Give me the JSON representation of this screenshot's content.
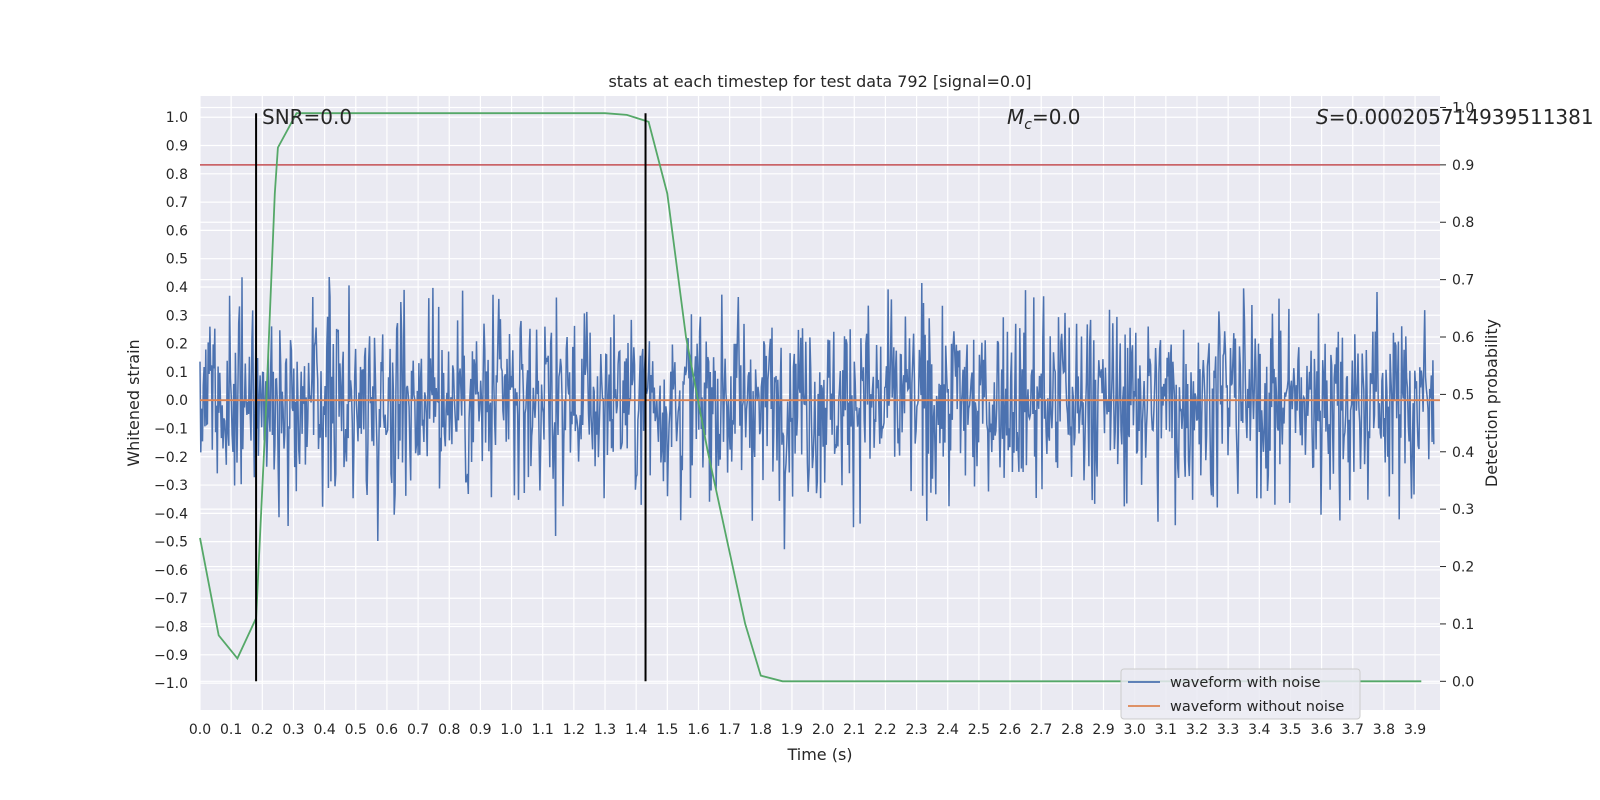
{
  "chart_data": {
    "type": "line",
    "title": "stats at each timestep for test data 792 [signal=0.0]",
    "xlabel": "Time (s)",
    "ylabel_left": "Whitened strain",
    "ylabel_right": "Detection probability",
    "xlim": [
      0.0,
      3.98
    ],
    "ylim_left": [
      -1.095,
      1.075
    ],
    "ylim_right": [
      -0.05,
      1.02
    ],
    "x_ticks": [
      "0.0",
      "0.1",
      "0.2",
      "0.3",
      "0.4",
      "0.5",
      "0.6",
      "0.7",
      "0.8",
      "0.9",
      "1.0",
      "1.1",
      "1.2",
      "1.3",
      "1.4",
      "1.5",
      "1.6",
      "1.7",
      "1.8",
      "1.9",
      "2.0",
      "2.1",
      "2.2",
      "2.3",
      "2.4",
      "2.5",
      "2.6",
      "2.7",
      "2.8",
      "2.9",
      "3.0",
      "3.1",
      "3.2",
      "3.3",
      "3.4",
      "3.5",
      "3.6",
      "3.7",
      "3.8",
      "3.9"
    ],
    "y_ticks_left": [
      "1.0",
      "0.9",
      "0.8",
      "0.7",
      "0.6",
      "0.5",
      "0.4",
      "0.3",
      "0.2",
      "0.1",
      "0.0",
      "−0.1",
      "−0.2",
      "−0.3",
      "−0.4",
      "−0.5",
      "−0.6",
      "−0.7",
      "−0.8",
      "−0.9",
      "−1.0"
    ],
    "y_ticks_right": [
      "1.0",
      "0.9",
      "0.8",
      "0.7",
      "0.6",
      "0.5",
      "0.4",
      "0.3",
      "0.2",
      "0.1",
      "0.0"
    ],
    "grid": true,
    "legend_position": "bottom-right",
    "colors": {
      "noise": "#4c72b0",
      "clean": "#dd8452",
      "prob": "#55a868",
      "threshold": "#c44e52",
      "marker": "#000000",
      "background": "#eaeaf2",
      "grid": "#ffffff"
    },
    "series": [
      {
        "name": "waveform with noise",
        "axis": "left",
        "note_style": "dense noise within about ±1.0"
      },
      {
        "name": "waveform without noise",
        "axis": "left",
        "x": [
          0.0,
          3.98
        ],
        "y": [
          0.0,
          0.0
        ]
      },
      {
        "axis": "right",
        "x": [
          0.0,
          0.06,
          0.12,
          0.18,
          0.21,
          0.24,
          0.25,
          0.31,
          0.5,
          0.8,
          1.0,
          1.2,
          1.3,
          1.37,
          1.44,
          1.5,
          1.56,
          1.63,
          1.69,
          1.75,
          1.8,
          1.87,
          2.0,
          2.5,
          3.0,
          3.5,
          3.92
        ],
        "y": [
          0.25,
          0.08,
          0.04,
          0.11,
          0.45,
          0.85,
          0.93,
          0.99,
          0.99,
          0.99,
          0.99,
          0.99,
          0.99,
          0.987,
          0.975,
          0.85,
          0.6,
          0.4,
          0.25,
          0.1,
          0.01,
          0.0,
          0.0,
          0.0,
          0.0,
          0.0,
          0.0
        ]
      },
      {
        "axis": "right",
        "kind": "threshold",
        "y": 0.9
      }
    ],
    "vlines": [
      0.18,
      1.43
    ],
    "annotations": [
      {
        "text": "SNR=0.0",
        "x": 0.19
      },
      {
        "text_main": "M",
        "text_sub": "c",
        "text_rest": "=0.0",
        "x": 2.59
      },
      {
        "text_main": "S",
        "text_rest": "=0.000205714939511381",
        "x": 3.59
      }
    ]
  }
}
